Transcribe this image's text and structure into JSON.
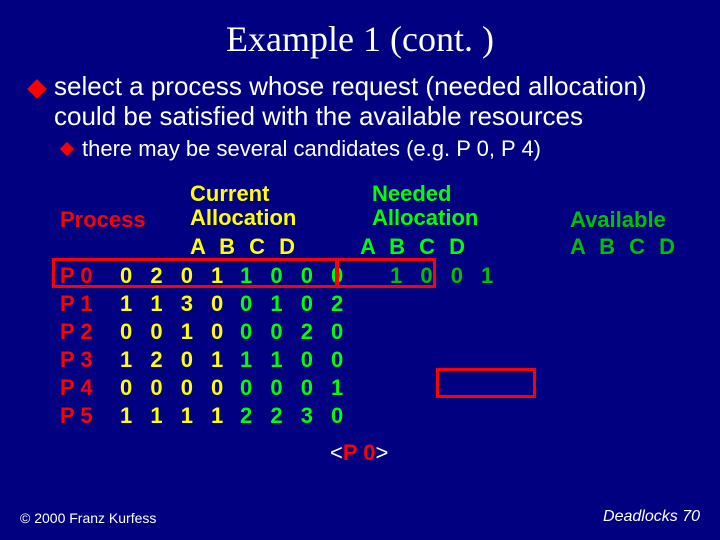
{
  "title": "Example 1 (cont. )",
  "bullet": {
    "main": "select a process whose request (needed allocation) could be satisfied with the available resources",
    "sub": "there may be several candidates (e.g. P 0, P 4)"
  },
  "headers": {
    "process": "Process",
    "current": "Current\nAllocation",
    "needed": "Needed\nAllocation",
    "available": "Available",
    "abcd_cur": "A B  C  D",
    "abcd_need": "A  B  C  D",
    "abcd_av": "A  B  C  D"
  },
  "rows": [
    {
      "name": "P 0",
      "cur": "0 2 0 1",
      "need": "1 0 0 0",
      "avail": "1 0 0 1"
    },
    {
      "name": "P 1",
      "cur": "1 1 3 0",
      "need": "0 1 0 2",
      "avail": ""
    },
    {
      "name": "P 2",
      "cur": "0 0 1 0",
      "need": "0 0 2 0",
      "avail": ""
    },
    {
      "name": "P 3",
      "cur": "1 2 0 1",
      "need": "1 1 0 0",
      "avail": ""
    },
    {
      "name": "P 4",
      "cur": "0 0 0 0",
      "need": "0 0 0 1",
      "avail": ""
    },
    {
      "name": "P 5",
      "cur": "1 1 1 1",
      "need": "2 2 3 0",
      "avail": ""
    }
  ],
  "selected": "P 0",
  "footer": {
    "left": "© 2000 Franz Kurfess",
    "right": "Deadlocks  70"
  },
  "colors": {
    "bg": "#000080",
    "title": "#ffffff",
    "bullet_diamond": "#ff0000",
    "process": "#ff0000",
    "current": "#ffff00",
    "needed": "#00ff00",
    "available": "#00c000",
    "highlight_border": "#ff0000",
    "text": "#ffffff"
  }
}
